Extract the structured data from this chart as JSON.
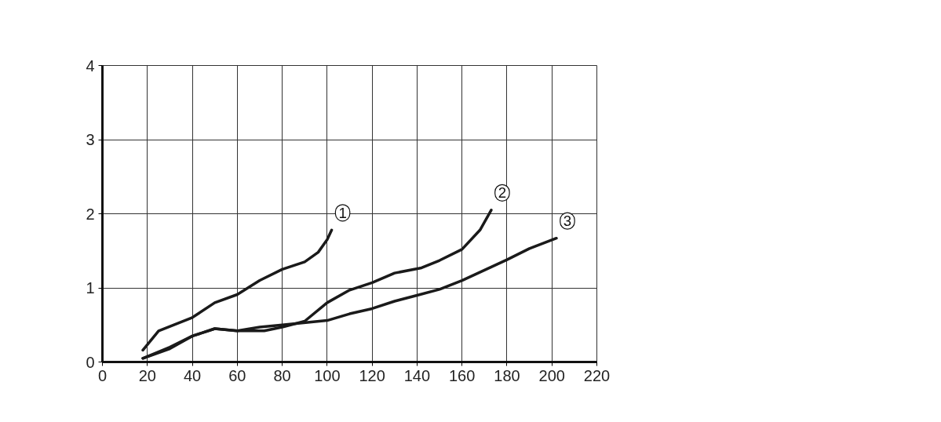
{
  "chart_data": {
    "type": "line",
    "xlim": [
      0,
      220
    ],
    "ylim": [
      0,
      4
    ],
    "xticks": [
      0,
      20,
      40,
      60,
      80,
      100,
      120,
      140,
      160,
      180,
      200,
      220
    ],
    "yticks": [
      0,
      1,
      2,
      3,
      4
    ],
    "grid": true,
    "marker": "none",
    "line_style": "solid",
    "series": [
      {
        "name": "1",
        "color": "#1a1a1a",
        "x": [
          18,
          25,
          40,
          50,
          60,
          70,
          80,
          90,
          96,
          100,
          102
        ],
        "values": [
          0.16,
          0.42,
          0.6,
          0.8,
          0.91,
          1.1,
          1.25,
          1.35,
          1.48,
          1.65,
          1.78
        ]
      },
      {
        "name": "2",
        "color": "#1a1a1a",
        "x": [
          18,
          30,
          40,
          50,
          60,
          72,
          80,
          90,
          100,
          110,
          120,
          130,
          142,
          150,
          160,
          168,
          173
        ],
        "values": [
          0.05,
          0.18,
          0.35,
          0.45,
          0.42,
          0.42,
          0.47,
          0.55,
          0.8,
          0.97,
          1.07,
          1.2,
          1.27,
          1.37,
          1.52,
          1.78,
          2.05
        ]
      },
      {
        "name": "3",
        "color": "#1a1a1a",
        "x": [
          18,
          30,
          40,
          50,
          60,
          70,
          80,
          100,
          110,
          120,
          130,
          140,
          150,
          160,
          170,
          180,
          190,
          202
        ],
        "values": [
          0.05,
          0.2,
          0.35,
          0.45,
          0.42,
          0.47,
          0.5,
          0.56,
          0.65,
          0.72,
          0.82,
          0.9,
          0.98,
          1.1,
          1.24,
          1.38,
          1.53,
          1.67
        ]
      }
    ]
  }
}
